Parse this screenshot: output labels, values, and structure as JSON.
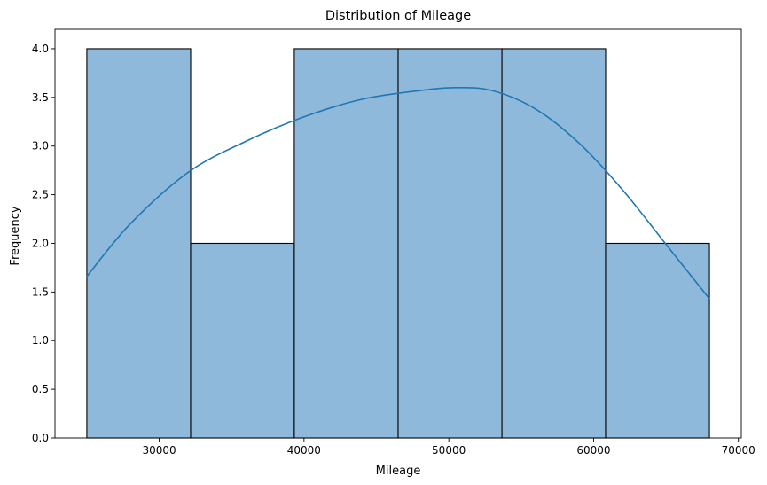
{
  "chart_data": {
    "type": "bar",
    "subtype": "histogram-with-kde",
    "title": "Distribution of Mileage",
    "xlabel": "Mileage",
    "ylabel": "Frequency",
    "xlim": [
      22800,
      70200
    ],
    "ylim": [
      0,
      4.2
    ],
    "xticks": [
      30000,
      40000,
      50000,
      60000,
      70000
    ],
    "yticks": [
      0.0,
      0.5,
      1.0,
      1.5,
      2.0,
      2.5,
      3.0,
      3.5,
      4.0
    ],
    "ytick_labels": [
      "0.0",
      "0.5",
      "1.0",
      "1.5",
      "2.0",
      "2.5",
      "3.0",
      "3.5",
      "4.0"
    ],
    "bins": [
      {
        "x0": 25000,
        "x1": 32170,
        "count": 4
      },
      {
        "x0": 32170,
        "x1": 39330,
        "count": 2
      },
      {
        "x0": 39330,
        "x1": 46500,
        "count": 4
      },
      {
        "x0": 46500,
        "x1": 53670,
        "count": 4
      },
      {
        "x0": 53670,
        "x1": 60830,
        "count": 4
      },
      {
        "x0": 60830,
        "x1": 68000,
        "count": 2
      }
    ],
    "kde": {
      "x": [
        25000,
        28000,
        32000,
        36000,
        40000,
        44000,
        48000,
        50500,
        53000,
        56000,
        59000,
        62000,
        65000,
        68000
      ],
      "y": [
        1.66,
        2.2,
        2.73,
        3.05,
        3.3,
        3.48,
        3.57,
        3.6,
        3.57,
        3.38,
        3.03,
        2.55,
        1.99,
        1.43
      ]
    },
    "bar_color": "#8fb9da",
    "bar_edge_color": "#000000",
    "kde_color": "#1f77b4",
    "grid": false,
    "legend": "none"
  }
}
